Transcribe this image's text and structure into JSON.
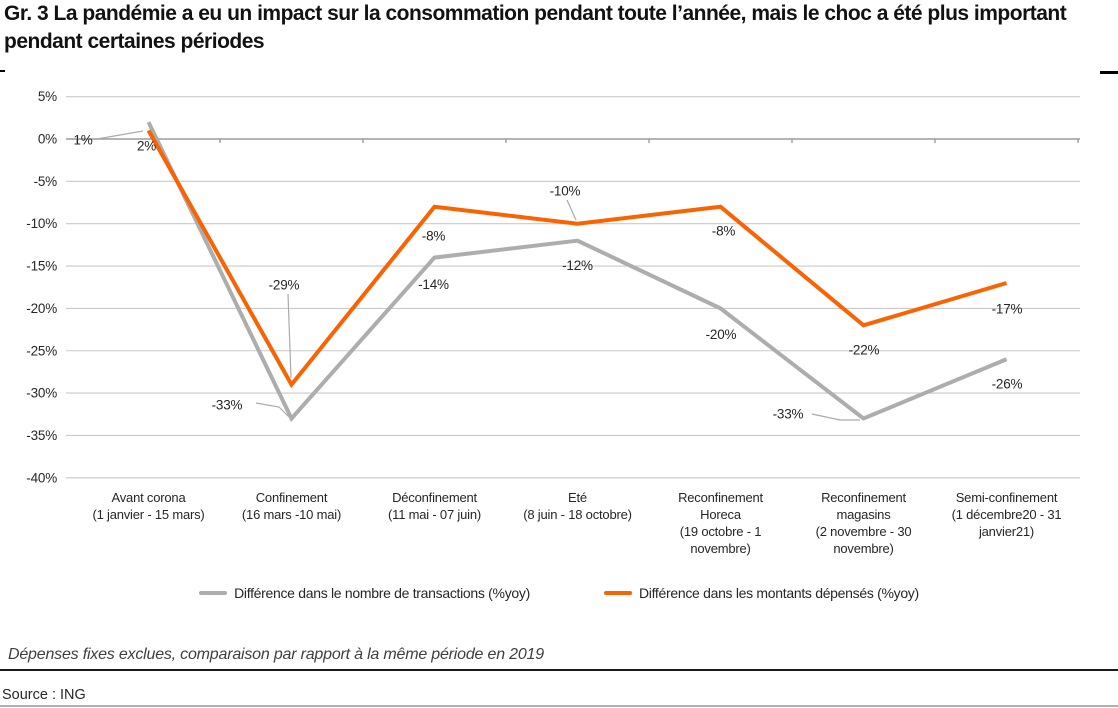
{
  "title": "Gr. 3 La pandémie a eu un impact sur la consommation pendant toute l’année, mais le choc a été plus important pendant certaines périodes",
  "chart_data": {
    "type": "line",
    "categories": [
      [
        "Avant corona",
        "(1 janvier - 15 mars)"
      ],
      [
        "Confinement",
        "(16 mars -10 mai)"
      ],
      [
        "Déconfinement",
        "(11 mai - 07 juin)"
      ],
      [
        "Eté",
        "(8 juin - 18 octobre)"
      ],
      [
        "Reconfinement",
        "Horeca",
        "(19 octobre - 1",
        "novembre)"
      ],
      [
        "Reconfinement",
        "magasins",
        "(2 novembre - 30",
        "novembre)"
      ],
      [
        "Semi-confinement",
        "(1 décembre20 - 31",
        "janvier21)"
      ]
    ],
    "series": [
      {
        "name": "Différence dans le nombre de transactions (%yoy)",
        "color": "#ADADAD",
        "values": [
          2,
          -33,
          -14,
          -12,
          -20,
          -33,
          -26
        ],
        "labels": [
          "2%",
          "-33%",
          "-14%",
          "-12%",
          "-20%",
          "-33%",
          "-26%"
        ]
      },
      {
        "name": "Différence dans les montants dépensés (%yoy)",
        "color": "#F96302",
        "values": [
          1,
          -29,
          -8,
          -10,
          -8,
          -22,
          -17
        ],
        "labels": [
          "1%",
          "-29%",
          "-8%",
          "-10%",
          "-8%",
          "-22%",
          "-17%"
        ]
      }
    ],
    "yticks": [
      {
        "value": 5,
        "label": "5%"
      },
      {
        "value": 0,
        "label": "0%"
      },
      {
        "value": -5,
        "label": "-5%"
      },
      {
        "value": -10,
        "label": "-10%"
      },
      {
        "value": -15,
        "label": "-15%"
      },
      {
        "value": -20,
        "label": "-20%"
      },
      {
        "value": -25,
        "label": "-25%"
      },
      {
        "value": -30,
        "label": "-30%"
      },
      {
        "value": -35,
        "label": "-35%"
      },
      {
        "value": -40,
        "label": "-40%"
      }
    ],
    "ylim": [
      -40,
      5
    ],
    "grid": true,
    "legend_position": "bottom",
    "colors": {
      "gridline": "#C9C9C9",
      "zero_axis": "#9B9B9B",
      "leader_line": "#ABABAB",
      "label_text": "#262626"
    }
  },
  "footnote": "Dépenses fixes exclues, comparaison par rapport à la même période en 2019",
  "source": "Source : ING"
}
